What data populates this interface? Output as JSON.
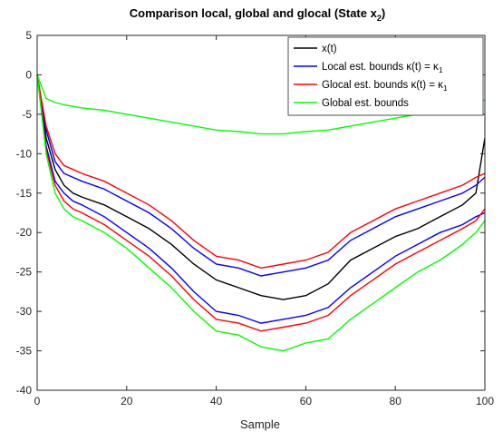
{
  "chart_data": {
    "type": "line",
    "title": "Comparison local, global and glocal (State x",
    "title_subscript": "2",
    "title_suffix": ")",
    "xlabel": "Sample",
    "ylabel": "",
    "xlim": [
      0,
      100
    ],
    "ylim": [
      -40,
      5
    ],
    "x_ticks": [
      0,
      20,
      40,
      60,
      80,
      100
    ],
    "y_ticks": [
      5,
      0,
      -5,
      -10,
      -15,
      -20,
      -25,
      -30,
      -35,
      -40
    ],
    "grid": false,
    "legend_position": "top-right",
    "x": [
      0,
      2,
      4,
      6,
      8,
      10,
      15,
      20,
      25,
      30,
      35,
      40,
      45,
      50,
      55,
      60,
      65,
      70,
      75,
      80,
      85,
      90,
      95,
      98,
      100
    ],
    "series": [
      {
        "name": "x(t)",
        "color": "#000000",
        "values": [
          0,
          -8,
          -12,
          -14,
          -15,
          -15.5,
          -16.5,
          -18,
          -19.5,
          -21.5,
          -24,
          -26,
          -27,
          -28,
          -28.5,
          -28,
          -26.5,
          -23.5,
          -22,
          -20.5,
          -19.5,
          -18,
          -16.5,
          -15,
          -8
        ]
      },
      {
        "name": "Local est. bounds κ(t) = κ1 (upper)",
        "color": "#0000ff",
        "legend": "Local est. bounds",
        "values": [
          0,
          -7,
          -11,
          -12.5,
          -13,
          -13.5,
          -14.5,
          -16,
          -17.5,
          -19.5,
          -22,
          -24,
          -24.5,
          -25.5,
          -25,
          -24.5,
          -23.5,
          -21,
          -19.5,
          -18,
          -17,
          -16,
          -15,
          -14,
          -13
        ]
      },
      {
        "name": "Local est. bounds κ(t) = κ1 (lower)",
        "color": "#0000ff",
        "values": [
          0,
          -9,
          -13.5,
          -15,
          -16,
          -16.5,
          -18,
          -20,
          -22,
          -24.5,
          -27.5,
          -30,
          -30.5,
          -31.5,
          -31,
          -30.5,
          -29.5,
          -27,
          -25,
          -23,
          -21.5,
          -20,
          -19,
          -18,
          -17.5
        ]
      },
      {
        "name": "Glocal est. bounds κ(t) = κ1 (upper)",
        "color": "#ff0000",
        "legend": "Glocal est. bounds",
        "values": [
          0,
          -6.5,
          -10,
          -11.5,
          -12,
          -12.5,
          -13.5,
          -15,
          -16.5,
          -18.5,
          -21,
          -23,
          -23.5,
          -24.5,
          -24,
          -23.5,
          -22.5,
          -20,
          -18.5,
          -17,
          -16,
          -15,
          -14,
          -13,
          -12.5
        ]
      },
      {
        "name": "Glocal est. bounds κ(t) = κ1 (lower)",
        "color": "#ff0000",
        "values": [
          0,
          -9.5,
          -14,
          -16,
          -17,
          -17.5,
          -19,
          -21,
          -23,
          -25.5,
          -28.5,
          -31,
          -31.5,
          -32.5,
          -32,
          -31.5,
          -30.5,
          -28,
          -26,
          -24,
          -22.5,
          -21,
          -19.5,
          -18.5,
          -17
        ]
      },
      {
        "name": "Global est. bounds (upper)",
        "color": "#00ff00",
        "legend": "Global est. bounds",
        "values": [
          0,
          -3,
          -3.5,
          -3.8,
          -4,
          -4.2,
          -4.5,
          -5,
          -5.5,
          -6,
          -6.5,
          -7,
          -7.2,
          -7.5,
          -7.5,
          -7.2,
          -7,
          -6.5,
          -6,
          -5.5,
          -5,
          -4.5,
          -4,
          -3.5,
          -3.2
        ]
      },
      {
        "name": "Global est. bounds (lower)",
        "color": "#00ff00",
        "values": [
          0,
          -10,
          -15,
          -17,
          -18,
          -18.5,
          -20,
          -22,
          -24.5,
          -27,
          -30,
          -32.5,
          -33,
          -34.5,
          -35,
          -34,
          -33.5,
          -31,
          -29,
          -27,
          -25,
          -23.5,
          -21.5,
          -20,
          -18.5
        ]
      }
    ],
    "legend": [
      {
        "label": "x(t)",
        "color": "#000000"
      },
      {
        "label": "Local est. bounds κ(t) = κ",
        "sub": "1",
        "color": "#0000ff"
      },
      {
        "label": "Glocal est. bounds κ(t) = κ",
        "sub": "1",
        "color": "#ff0000"
      },
      {
        "label": "Global est. bounds",
        "color": "#00ff00"
      }
    ]
  }
}
